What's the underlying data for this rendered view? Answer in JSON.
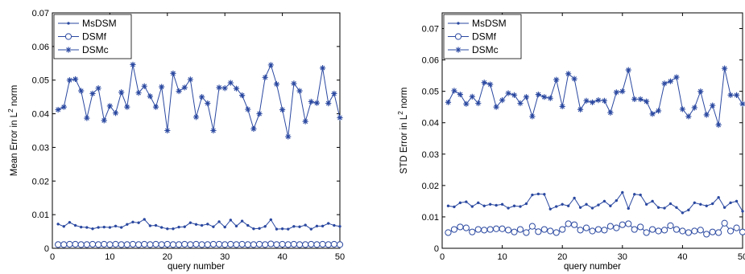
{
  "series_color": "#2a48a0",
  "chart_data": [
    {
      "type": "line",
      "xlabel": "query number",
      "ylabel_main": "Mean Error in L",
      "ylabel_sup": "2",
      "ylabel_tail": " norm",
      "xlim": [
        0,
        50
      ],
      "ylim": [
        0,
        0.07
      ],
      "xticks": [
        0,
        10,
        20,
        30,
        40,
        50
      ],
      "yticks": [
        0,
        0.01,
        0.02,
        0.03,
        0.04,
        0.05,
        0.06,
        0.07
      ],
      "ytick_labels": [
        "0",
        "0.01",
        "0.02",
        "0.03",
        "0.04",
        "0.05",
        "0.06",
        "0.07"
      ],
      "grid": false,
      "legend_position": "top-left",
      "x": [
        1,
        2,
        3,
        4,
        5,
        6,
        7,
        8,
        9,
        10,
        11,
        12,
        13,
        14,
        15,
        16,
        17,
        18,
        19,
        20,
        21,
        22,
        23,
        24,
        25,
        26,
        27,
        28,
        29,
        30,
        31,
        32,
        33,
        34,
        35,
        36,
        37,
        38,
        39,
        40,
        41,
        42,
        43,
        44,
        45,
        46,
        47,
        48,
        49,
        50
      ],
      "series": [
        {
          "name": "MsDSM",
          "marker": "dot",
          "values": [
            0.0072,
            0.0065,
            0.0077,
            0.0068,
            0.0063,
            0.0062,
            0.0058,
            0.0062,
            0.0063,
            0.0062,
            0.0066,
            0.0062,
            0.0071,
            0.0078,
            0.0076,
            0.0086,
            0.0067,
            0.0068,
            0.0062,
            0.0058,
            0.0058,
            0.0063,
            0.0064,
            0.0076,
            0.0071,
            0.0068,
            0.0072,
            0.0064,
            0.0079,
            0.0063,
            0.0084,
            0.0066,
            0.0081,
            0.0068,
            0.0058,
            0.0059,
            0.0065,
            0.0085,
            0.0057,
            0.0058,
            0.0057,
            0.0065,
            0.0064,
            0.0069,
            0.0057,
            0.0066,
            0.0066,
            0.0074,
            0.0068,
            0.0065
          ]
        },
        {
          "name": "DSMf",
          "marker": "circle",
          "values": [
            0.0011,
            0.0011,
            0.0012,
            0.0012,
            0.0011,
            0.0011,
            0.0012,
            0.0011,
            0.0012,
            0.0011,
            0.0012,
            0.0011,
            0.0011,
            0.0012,
            0.0011,
            0.0012,
            0.0011,
            0.0012,
            0.0011,
            0.0012,
            0.0011,
            0.0011,
            0.0012,
            0.0011,
            0.0012,
            0.0011,
            0.0011,
            0.0012,
            0.0012,
            0.0011,
            0.0012,
            0.0011,
            0.0012,
            0.0011,
            0.0011,
            0.0012,
            0.0011,
            0.0013,
            0.0011,
            0.0012,
            0.0011,
            0.0012,
            0.0011,
            0.0011,
            0.0012,
            0.0011,
            0.0012,
            0.0011,
            0.0012,
            0.0011
          ]
        },
        {
          "name": "DSMc",
          "marker": "star",
          "values": [
            0.0412,
            0.042,
            0.05,
            0.0503,
            0.0468,
            0.0387,
            0.046,
            0.0476,
            0.038,
            0.0423,
            0.0402,
            0.0464,
            0.042,
            0.0546,
            0.0462,
            0.0482,
            0.0452,
            0.042,
            0.048,
            0.035,
            0.052,
            0.0467,
            0.0478,
            0.0502,
            0.039,
            0.045,
            0.0431,
            0.035,
            0.0478,
            0.0476,
            0.0492,
            0.0475,
            0.0455,
            0.0413,
            0.0355,
            0.04,
            0.0508,
            0.0545,
            0.0488,
            0.0412,
            0.0332,
            0.049,
            0.0468,
            0.0377,
            0.0436,
            0.0432,
            0.0536,
            0.0431,
            0.046,
            0.0388
          ]
        }
      ]
    },
    {
      "type": "line",
      "xlabel": "query number",
      "ylabel_main": "STD Error in L",
      "ylabel_sup": "2",
      "ylabel_tail": " norm",
      "xlim": [
        0,
        50
      ],
      "ylim": [
        0,
        0.075
      ],
      "xticks": [
        0,
        10,
        20,
        30,
        40,
        50
      ],
      "yticks": [
        0,
        0.01,
        0.02,
        0.03,
        0.04,
        0.05,
        0.06,
        0.07
      ],
      "ytick_labels": [
        "0",
        "0.01",
        "0.02",
        "0.03",
        "0.04",
        "0.05",
        "0.06",
        "0.07"
      ],
      "grid": false,
      "legend_position": "top-left",
      "x": [
        1,
        2,
        3,
        4,
        5,
        6,
        7,
        8,
        9,
        10,
        11,
        12,
        13,
        14,
        15,
        16,
        17,
        18,
        19,
        20,
        21,
        22,
        23,
        24,
        25,
        26,
        27,
        28,
        29,
        30,
        31,
        32,
        33,
        34,
        35,
        36,
        37,
        38,
        39,
        40,
        41,
        42,
        43,
        44,
        45,
        46,
        47,
        48,
        49,
        50
      ],
      "series": [
        {
          "name": "MsDSM",
          "marker": "dot",
          "values": [
            0.0135,
            0.0132,
            0.0145,
            0.0148,
            0.0133,
            0.0145,
            0.0135,
            0.014,
            0.0137,
            0.014,
            0.0128,
            0.0135,
            0.0133,
            0.0142,
            0.017,
            0.0173,
            0.0172,
            0.0125,
            0.0133,
            0.014,
            0.0135,
            0.016,
            0.013,
            0.014,
            0.0128,
            0.0138,
            0.015,
            0.0135,
            0.0152,
            0.0178,
            0.0127,
            0.0172,
            0.017,
            0.014,
            0.015,
            0.013,
            0.0128,
            0.0142,
            0.013,
            0.0113,
            0.0122,
            0.0145,
            0.014,
            0.0135,
            0.0142,
            0.0162,
            0.013,
            0.0145,
            0.015,
            0.0118
          ]
        },
        {
          "name": "DSMf",
          "marker": "circle",
          "values": [
            0.005,
            0.006,
            0.0068,
            0.0065,
            0.0052,
            0.006,
            0.0058,
            0.006,
            0.0062,
            0.0062,
            0.0058,
            0.0052,
            0.006,
            0.005,
            0.007,
            0.0053,
            0.006,
            0.0055,
            0.005,
            0.006,
            0.0078,
            0.0075,
            0.0058,
            0.0065,
            0.0055,
            0.006,
            0.0058,
            0.007,
            0.0065,
            0.0075,
            0.0078,
            0.006,
            0.0068,
            0.005,
            0.006,
            0.0055,
            0.0058,
            0.0072,
            0.006,
            0.0055,
            0.005,
            0.0055,
            0.0058,
            0.0045,
            0.0052,
            0.005,
            0.008,
            0.0055,
            0.0065,
            0.0052
          ]
        },
        {
          "name": "DSMc",
          "marker": "star",
          "values": [
            0.0465,
            0.0502,
            0.049,
            0.046,
            0.0483,
            0.0462,
            0.0528,
            0.0522,
            0.045,
            0.0472,
            0.0494,
            0.0488,
            0.0462,
            0.0482,
            0.042,
            0.049,
            0.0482,
            0.0478,
            0.0537,
            0.0452,
            0.0556,
            0.054,
            0.0442,
            0.047,
            0.0465,
            0.0472,
            0.047,
            0.0432,
            0.0497,
            0.05,
            0.0568,
            0.0475,
            0.0475,
            0.0468,
            0.0428,
            0.0438,
            0.0525,
            0.0532,
            0.0545,
            0.0443,
            0.042,
            0.0448,
            0.05,
            0.0425,
            0.0455,
            0.0393,
            0.0573,
            0.0488,
            0.0488,
            0.046
          ]
        }
      ]
    }
  ]
}
